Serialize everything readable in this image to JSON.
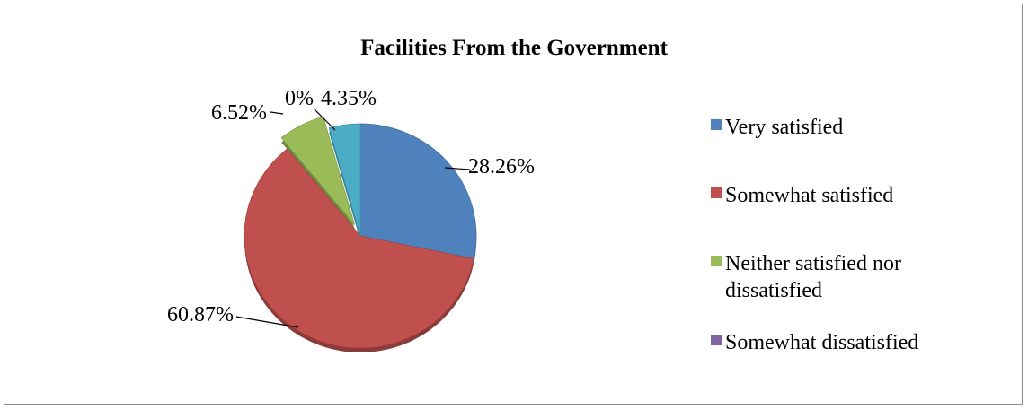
{
  "chart_data": {
    "type": "pie",
    "title": "Facilities From the Government",
    "slices": [
      {
        "label": "Very satisfied",
        "value": 28.26,
        "display": "28.26%",
        "color": "#4f81bd"
      },
      {
        "label": "Somewhat satisfied",
        "value": 60.87,
        "display": "60.87%",
        "color": "#c0504d"
      },
      {
        "label": "Neither satisfied nor dissatisfied",
        "value": 6.52,
        "display": "6.52%",
        "color": "#9bbb59"
      },
      {
        "label": "Somewhat dissatisfied",
        "value": 0,
        "display": "0%",
        "color": "#8064a2"
      },
      {
        "label": "",
        "value": 4.35,
        "display": "4.35%",
        "color": "#4bacc6"
      }
    ],
    "legend": {
      "placement": "right",
      "entries": [
        {
          "lines": [
            "Very satisfied"
          ],
          "color": "#4f81bd"
        },
        {
          "lines": [
            "Somewhat satisfied"
          ],
          "color": "#c0504d"
        },
        {
          "lines": [
            "Neither satisfied nor",
            "dissatisfied"
          ],
          "color": "#9bbb59"
        },
        {
          "lines": [
            "Somewhat dissatisfied"
          ],
          "color": "#8064a2"
        }
      ]
    },
    "exploded_slices": [
      "Neither satisfied nor dissatisfied"
    ],
    "three_d": true
  }
}
